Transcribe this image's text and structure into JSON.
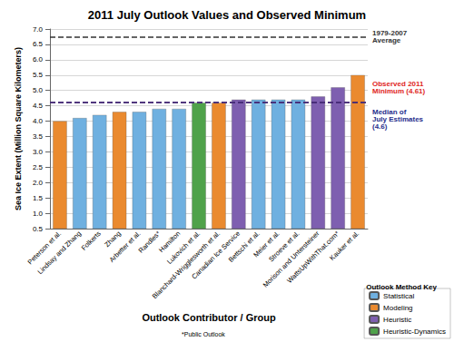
{
  "chart_data": {
    "type": "bar",
    "title": "2011 July Outlook Values and Observed Minimum",
    "x_label": "Outlook Contributor / Group",
    "y_label": "Sea Ice Extent (Million Square Kilometers)",
    "categories": [
      "Peterson et al.",
      "Lindsay and Zhang",
      "Folkerts",
      "Zhang",
      "Arbetter et al.",
      "Randles*",
      "Hamilton",
      "Lukovich et al.",
      "Blanchard-Wrigglesworth et al.",
      "Canadian Ice Service",
      "Bettschi et al.",
      "Meier et al.",
      "Stroeve et al.",
      "Morison and Untersteiner",
      "WattsUpWithThat.com*",
      "Kauker et al."
    ],
    "series": [
      {
        "name": "Statistical",
        "color": "#6fb0e0",
        "values": [
          null,
          4.1,
          4.2,
          null,
          4.3,
          4.4,
          4.4,
          null,
          null,
          null,
          4.7,
          4.7,
          4.7,
          null,
          null,
          null
        ]
      },
      {
        "name": "Modeling",
        "color": "#ea8a2f",
        "values": [
          4.0,
          null,
          null,
          4.3,
          null,
          null,
          null,
          null,
          4.6,
          null,
          null,
          null,
          null,
          null,
          null,
          5.5
        ]
      },
      {
        "name": "Heuristic",
        "color": "#7e5fb0",
        "values": [
          null,
          null,
          null,
          null,
          null,
          null,
          null,
          null,
          null,
          4.7,
          null,
          null,
          null,
          4.8,
          5.1,
          null
        ]
      },
      {
        "name": "Heuristic-Dynamics",
        "color": "#4fa24a",
        "values": [
          null,
          null,
          null,
          null,
          null,
          null,
          null,
          4.6,
          null,
          null,
          null,
          null,
          null,
          null,
          null,
          null
        ]
      }
    ],
    "stacked": true,
    "ylim": [
      0.5,
      7.0
    ],
    "yticks": [
      0.5,
      {
        "value": 1,
        "label": "1.0"
      },
      1.5,
      {
        "value": 2,
        "label": "2.0"
      },
      2.5,
      {
        "value": 3,
        "label": "3.0"
      },
      3.5,
      {
        "value": 4,
        "label": "4.0"
      },
      4.5,
      {
        "value": 5,
        "label": "5.0"
      },
      5.5,
      {
        "value": 6,
        "label": "6.0"
      },
      6.5,
      {
        "value": 7,
        "label": "7.0"
      }
    ],
    "grid": true,
    "legend": "lower right",
    "legend_title": "Outlook Method Key",
    "footnote": "*Public Outlook",
    "reference_lines": [
      {
        "label": "1979-2007\nAverage",
        "value": 6.74,
        "color": "#333333",
        "line_style": "dashed"
      },
      {
        "label": "Observed 2011\nMinimum (4.61)",
        "value": 4.61,
        "color": "#e0241c",
        "line_style": "dashed"
      },
      {
        "label": "Median of\nJuly Estimates\n(4.6)",
        "value": 4.6,
        "color": "#1f2d8c",
        "line_style": "dashed"
      }
    ]
  }
}
